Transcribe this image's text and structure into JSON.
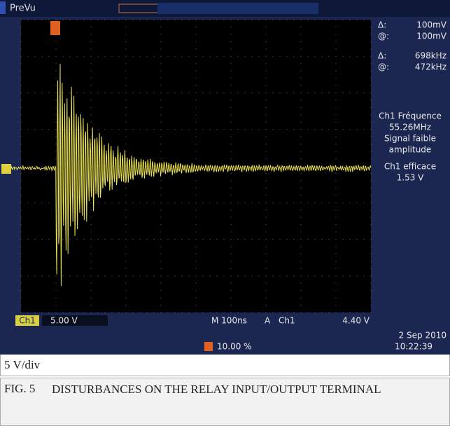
{
  "screen": {
    "brand": "PreVu",
    "cursor": [
      {
        "label": "Δ:",
        "value": "100mV"
      },
      {
        "label": "@:",
        "value": "100mV"
      },
      {
        "label": "Δ:",
        "value": "698kHz"
      },
      {
        "label": "@:",
        "value": "472kHz"
      }
    ],
    "measurements": [
      "Ch1 Fréquence",
      "55.26MHz",
      "Signal faible",
      "amplitude",
      "Ch1 efficace",
      "1.53 V"
    ],
    "channel": "Ch1",
    "scale": "5.00 V",
    "timebase": "M 100ns",
    "trigger_mode": "A",
    "trigger_channel": "Ch1",
    "trigger_level": "4.40 V",
    "trigger_position": "10.00 %",
    "date": "2 Sep 2010",
    "time": "10:22:39"
  },
  "caption": {
    "scale_note": "5 V/div",
    "fig_number": "FIG. 5",
    "fig_title": "DISTURBANCES ON THE RELAY INPUT/OUTPUT TERMINAL"
  }
}
